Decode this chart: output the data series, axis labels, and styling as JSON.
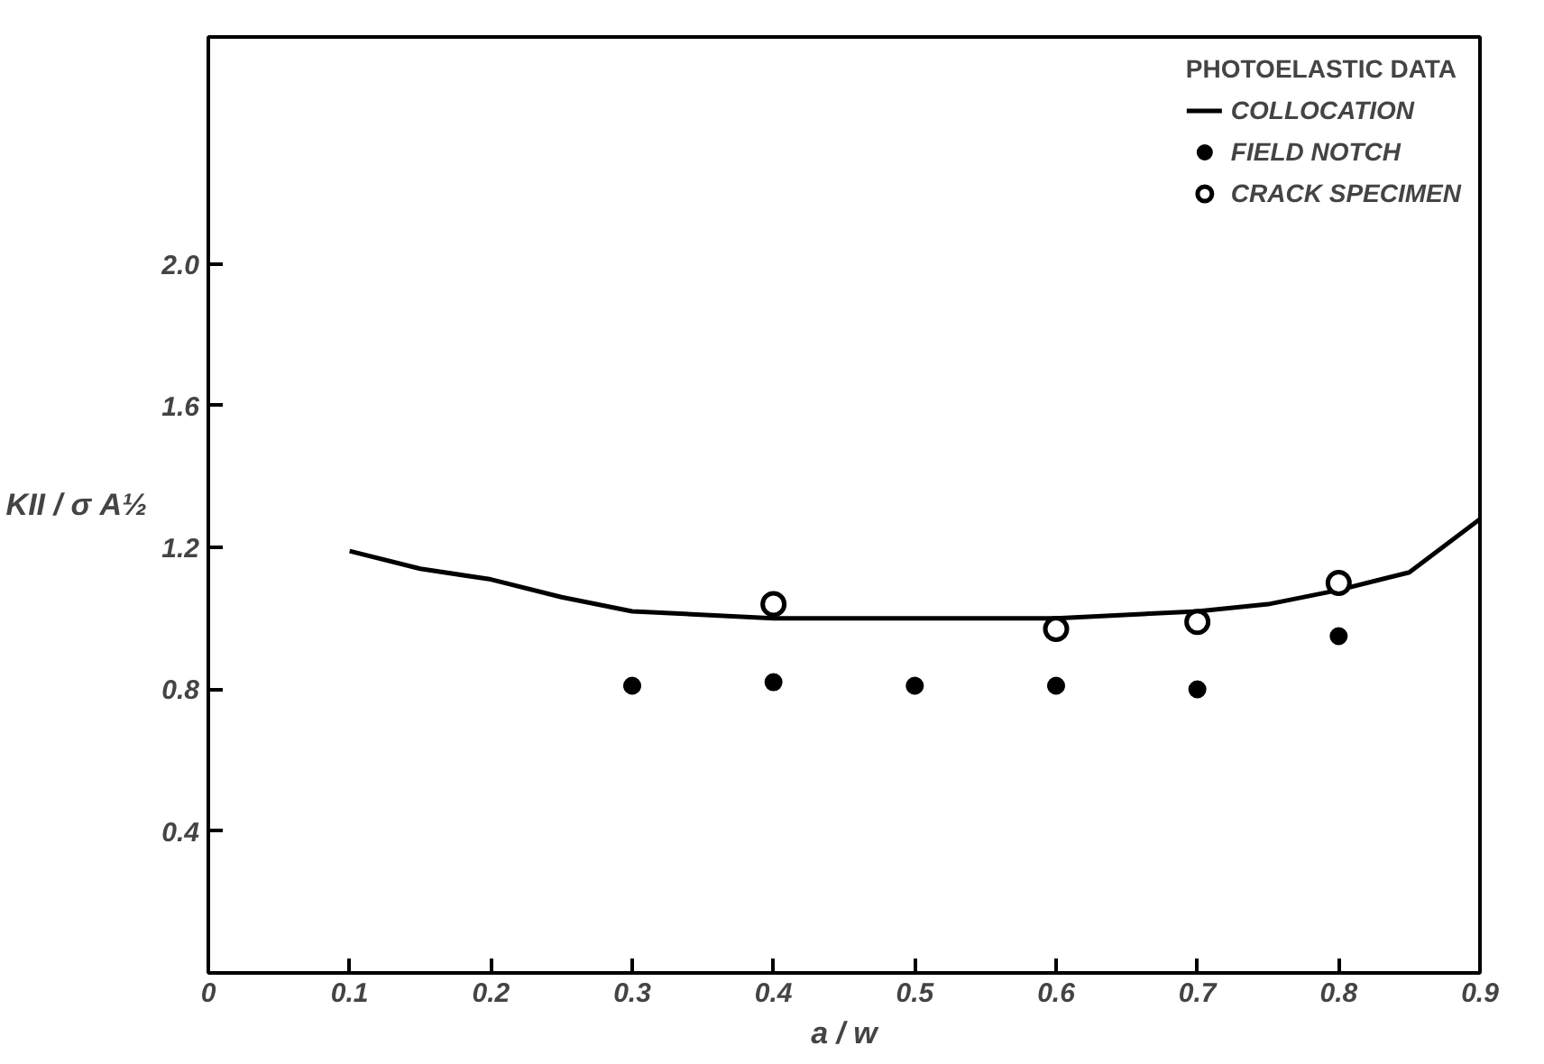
{
  "chart_data": {
    "type": "scatter",
    "xlabel": "a / w",
    "ylabel": "KII / σ A½",
    "legend_title": "PHOTOELASTIC DATA",
    "xlim": [
      0,
      0.9
    ],
    "ylim": [
      0,
      2.64
    ],
    "xticks": [
      0,
      0.1,
      0.2,
      0.3,
      0.4,
      0.5,
      0.6,
      0.7,
      0.8,
      0.9
    ],
    "yticks": [
      0.4,
      0.8,
      1.2,
      1.6,
      {
        "value": 2,
        "label": "2.0"
      }
    ],
    "grid": false,
    "legend": "top right",
    "series": [
      {
        "name": "COLLOCATION",
        "type": "line",
        "color": "#000000",
        "x": [
          0.1,
          0.15,
          0.2,
          0.25,
          0.3,
          0.4,
          0.5,
          0.6,
          0.7,
          0.75,
          0.8,
          0.85,
          0.9
        ],
        "values": [
          1.19,
          1.14,
          1.11,
          1.06,
          1.02,
          1.0,
          1.0,
          1.0,
          1.02,
          1.04,
          1.08,
          1.13,
          1.28
        ]
      },
      {
        "name": "FIELD NOTCH",
        "marker": "circle",
        "color": "#000000",
        "x": [
          0.3,
          0.4,
          0.5,
          0.6,
          0.7,
          0.8
        ],
        "values": [
          0.81,
          0.82,
          0.81,
          0.81,
          0.8,
          0.95
        ]
      },
      {
        "name": "CRACK SPECIMEN",
        "marker": "open circle",
        "color": "#000000",
        "x": [
          0.4,
          0.6,
          0.7,
          0.8
        ],
        "values": [
          1.04,
          0.97,
          0.99,
          1.1
        ]
      }
    ]
  }
}
